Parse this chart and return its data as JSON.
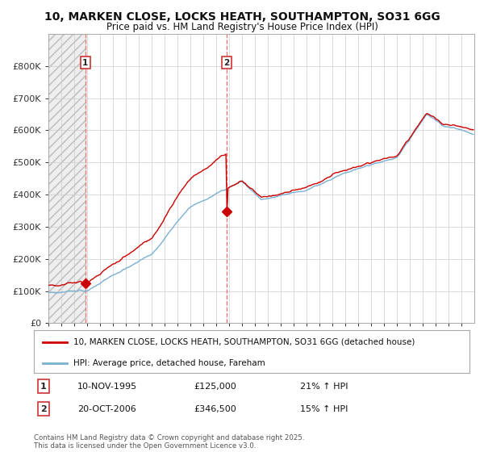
{
  "title_line1": "10, MARKEN CLOSE, LOCKS HEATH, SOUTHAMPTON, SO31 6GG",
  "title_line2": "Price paid vs. HM Land Registry's House Price Index (HPI)",
  "ylim": [
    0,
    900000
  ],
  "yticks": [
    0,
    100000,
    200000,
    300000,
    400000,
    500000,
    600000,
    700000,
    800000
  ],
  "ytick_labels": [
    "£0",
    "£100K",
    "£200K",
    "£300K",
    "£400K",
    "£500K",
    "£600K",
    "£700K",
    "£800K"
  ],
  "xlim_start": 1993.0,
  "xlim_end": 2025.99,
  "hatch_end": 1995.85,
  "purchase1_x": 1995.87,
  "purchase1_y": 125000,
  "purchase1_label": "1",
  "purchase1_date": "10-NOV-1995",
  "purchase1_price": "£125,000",
  "purchase1_hpi": "21% ↑ HPI",
  "purchase2_x": 2006.8,
  "purchase2_y": 346500,
  "purchase2_label": "2",
  "purchase2_date": "20-OCT-2006",
  "purchase2_price": "£346,500",
  "purchase2_hpi": "15% ↑ HPI",
  "line1_color": "#cc0000",
  "line2_color": "#7ab0d4",
  "marker_color": "#cc0000",
  "vline_color": "#e87878",
  "grid_color": "#cccccc",
  "background_color": "#ffffff",
  "legend_line1": "10, MARKEN CLOSE, LOCKS HEATH, SOUTHAMPTON, SO31 6GG (detached house)",
  "legend_line2": "HPI: Average price, detached house, Fareham",
  "footer": "Contains HM Land Registry data © Crown copyright and database right 2025.\nThis data is licensed under the Open Government Licence v3.0."
}
